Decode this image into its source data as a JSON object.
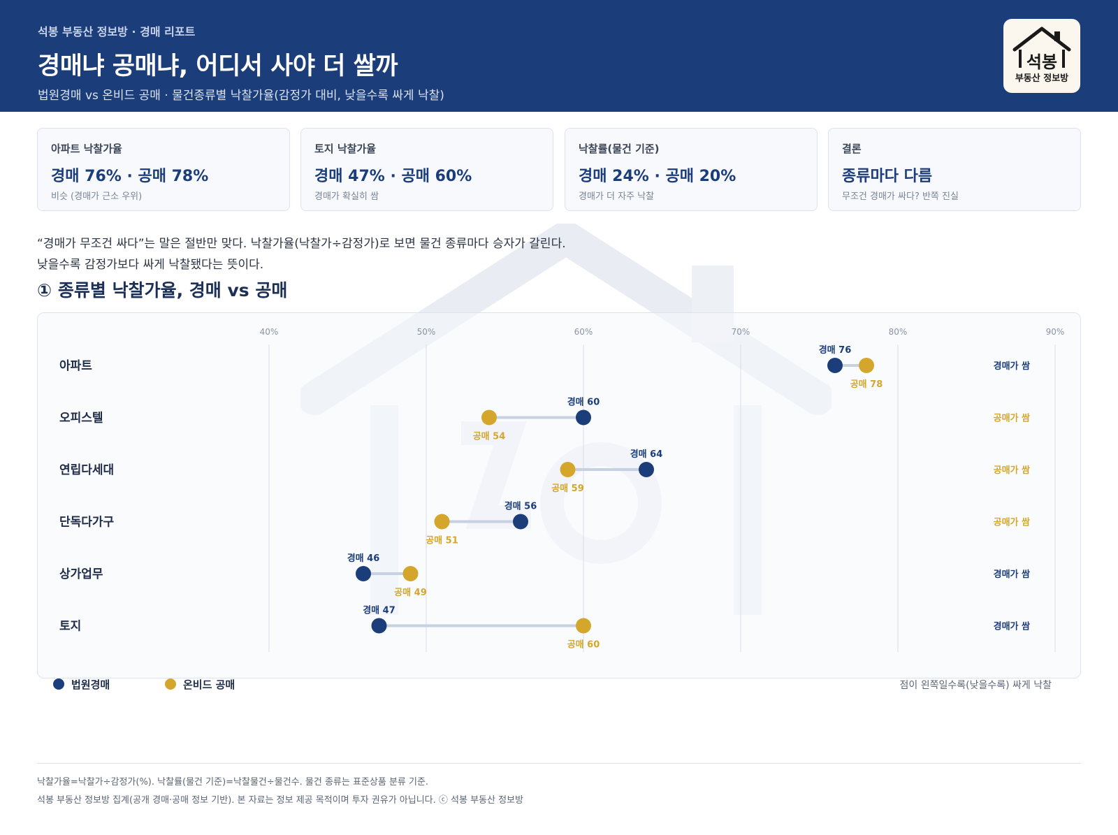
{
  "header": {
    "kicker": "석봉 부동산 정보방 · 경매 리포트",
    "title": "경매냐 공매냐, 어디서 사야 더 쌀까",
    "subtitle": "법원경매 vs 온비드 공매 · 물건종류별 낙찰가율(감정가 대비, 낮을수록 싸게 낙찰)",
    "logo_main": "석봉",
    "logo_sub": "부동산 정보방"
  },
  "cards": [
    {
      "label": "아파트 낙찰가율",
      "value": "경매 76% · 공매 78%",
      "note": "비슷 (경매가 근소 우위)"
    },
    {
      "label": "토지 낙찰가율",
      "value": "경매 47% · 공매 60%",
      "note": "경매가 확실히 쌈"
    },
    {
      "label": "낙찰률(물건 기준)",
      "value": "경매 24% · 공매 20%",
      "note": "경매가 더 자주 낙찰"
    },
    {
      "label": "결론",
      "value": "종류마다 다름",
      "note": "무조건 경매가 싸다? 반쪽 진실"
    }
  ],
  "intro": {
    "line1": "“경매가 무조건 싸다”는 말은 절반만 맞다. 낙찰가율(낙찰가÷감정가)로 보면 물건 종류마다 승자가 갈린다.",
    "line2": "낮을수록 감정가보다 싸게 낙찰됐다는 뜻이다."
  },
  "section_title": "① 종류별 낙찰가율, 경매 vs 공매",
  "chart_data": {
    "type": "dumbbell",
    "xlim": [
      40,
      90
    ],
    "ticks": [
      40,
      50,
      60,
      70,
      80,
      90
    ],
    "tick_labels": [
      "40%",
      "50%",
      "60%",
      "70%",
      "80%",
      "90%"
    ],
    "grid": true,
    "categories": [
      "아파트",
      "오피스텔",
      "연립다세대",
      "단독다가구",
      "상가업무",
      "토지"
    ],
    "series": [
      {
        "name": "법원경매",
        "point_prefix": "경매",
        "color": "#1b3d7a",
        "values": [
          76,
          60,
          64,
          56,
          46,
          47
        ]
      },
      {
        "name": "온비드 공매",
        "point_prefix": "공매",
        "color": "#d4a72c",
        "values": [
          78,
          54,
          59,
          51,
          49,
          60
        ]
      }
    ],
    "verdicts": [
      "경매가 쌈",
      "공매가 쌈",
      "공매가 쌈",
      "공매가 쌈",
      "경매가 쌈",
      "경매가 쌈"
    ],
    "note": "점이 왼쪽일수록(낮을수록) 싸게 낙찰"
  },
  "colors": {
    "auction": "#1b3d7a",
    "public_sale": "#d4a72c",
    "header_bg": "#1b3d7a"
  },
  "footnotes": [
    "낙찰가율=낙찰가÷감정가(%). 낙찰률(물건 기준)=낙찰물건÷물건수. 물건 종류는 표준상품 분류 기준.",
    "석봉 부동산 정보방 집계(공개 경매·공매 정보 기반). 본 자료는 정보 제공 목적이며 투자 권유가 아닙니다. ⓒ 석봉 부동산 정보방"
  ]
}
